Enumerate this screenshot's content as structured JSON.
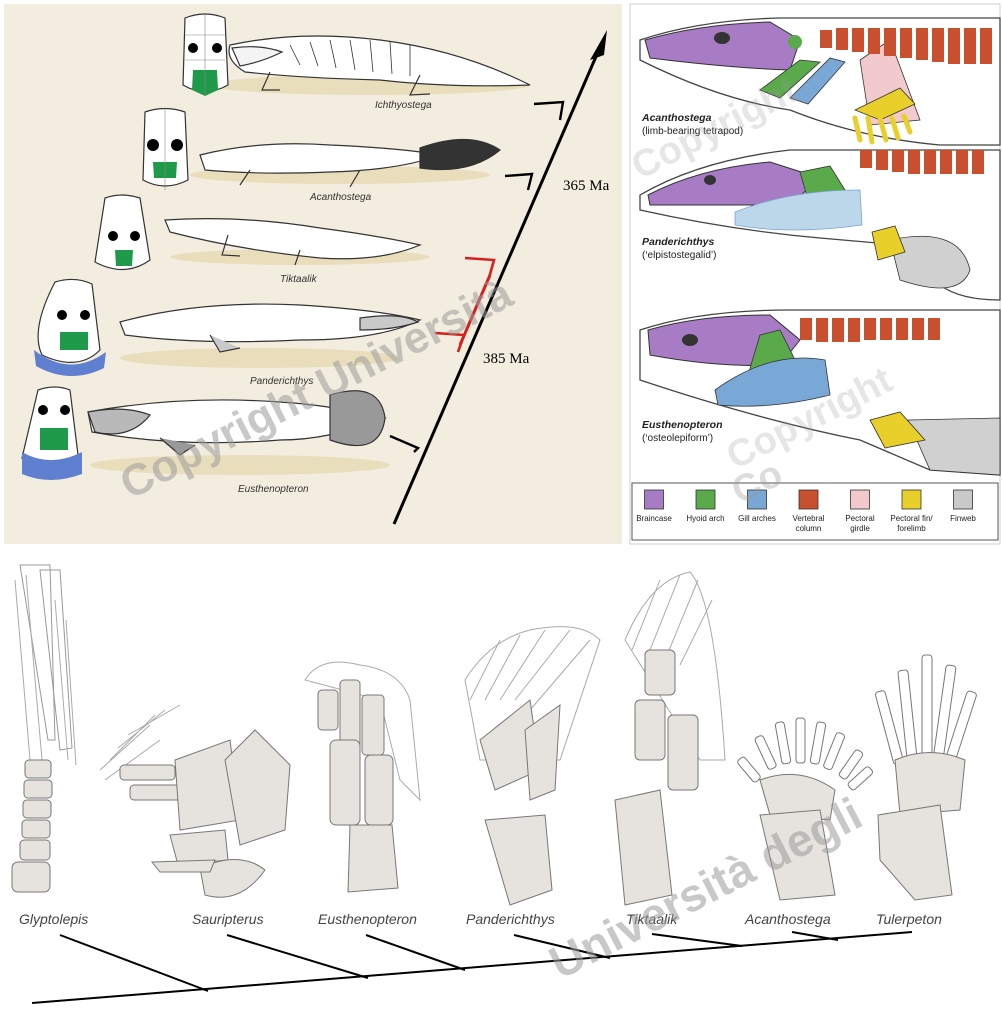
{
  "timeline": {
    "taxa": [
      "Ichthyostega",
      "Acanthostega",
      "Tiktaalik",
      "Panderichthys",
      "Eusthenopteron"
    ],
    "ages": {
      "upper": "365 Ma",
      "lower": "385 Ma"
    },
    "colors": {
      "background": "#f3eddf",
      "axis": "#000000",
      "highlight": "#d62020",
      "skull_green": "#1f9a4a",
      "skull_blue": "#5f7fd0"
    }
  },
  "skulls_panel": {
    "specimens": [
      {
        "name": "Acanthostega",
        "note": "(limb-bearing tetrapod)"
      },
      {
        "name": "Panderichthys",
        "note": "(‘elpistostegalid’)"
      },
      {
        "name": "Eusthenopteron",
        "note": "(‘osteolepiform’)"
      }
    ],
    "legend": [
      {
        "label": "Braincase",
        "color": "#a77cc4"
      },
      {
        "label": "Hyoid arch",
        "color": "#5aaa4c"
      },
      {
        "label": "Gill arches",
        "color": "#79a8d6"
      },
      {
        "label": "Vertebral column",
        "color": "#c8502e"
      },
      {
        "label": "Pectoral girdle",
        "color": "#f2c9cc"
      },
      {
        "label": "Pectoral fin/ forelimb",
        "color": "#e8cf2a"
      },
      {
        "label": "Finweb",
        "color": "#c9c9c9"
      }
    ]
  },
  "fins": {
    "taxa": [
      "Glyptolepis",
      "Sauripterus",
      "Eusthenopteron",
      "Panderichthys",
      "Tiktaalik",
      "Acanthostega",
      "Tulerpeton"
    ],
    "bone_color": "#e6e3de"
  },
  "watermark": [
    "Copyright Università",
    "Università degli",
    "Copyright",
    "Copyright",
    "Co"
  ]
}
